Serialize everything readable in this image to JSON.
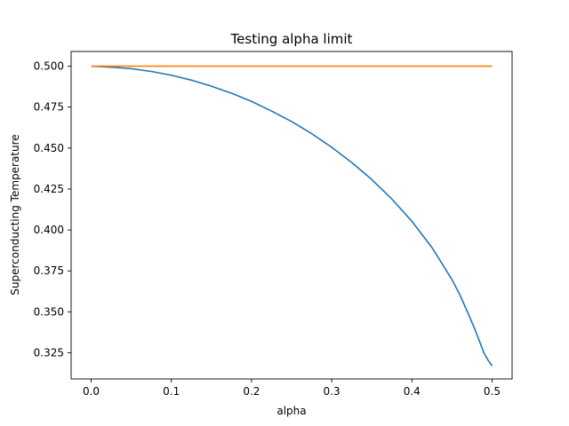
{
  "chart_data": {
    "type": "line",
    "title": "Testing alpha limit",
    "xlabel": "alpha",
    "ylabel": "Superconducting Temperature",
    "xlim": [
      -0.025,
      0.525
    ],
    "ylim": [
      0.309,
      0.509
    ],
    "grid": false,
    "legend": "none",
    "x_ticks": [
      0.0,
      0.1,
      0.2,
      0.3,
      0.4,
      0.5
    ],
    "x_tick_labels": [
      "0.0",
      "0.1",
      "0.2",
      "0.3",
      "0.4",
      "0.5"
    ],
    "y_ticks": [
      0.325,
      0.35,
      0.375,
      0.4,
      0.425,
      0.45,
      0.475,
      0.5
    ],
    "y_tick_labels": [
      "0.325",
      "0.350",
      "0.375",
      "0.400",
      "0.425",
      "0.450",
      "0.475",
      "0.500"
    ],
    "series": [
      {
        "color": "#1f77b4",
        "x": [
          0.0,
          0.025,
          0.05,
          0.075,
          0.1,
          0.125,
          0.15,
          0.175,
          0.2,
          0.225,
          0.25,
          0.275,
          0.3,
          0.325,
          0.35,
          0.375,
          0.4,
          0.425,
          0.45,
          0.46,
          0.47,
          0.48,
          0.49,
          0.495,
          0.5
        ],
        "y": [
          0.5,
          0.4994,
          0.4985,
          0.4968,
          0.4945,
          0.4915,
          0.4878,
          0.4835,
          0.4785,
          0.4726,
          0.4662,
          0.4588,
          0.4505,
          0.4412,
          0.4308,
          0.4189,
          0.4053,
          0.3893,
          0.3697,
          0.3602,
          0.3492,
          0.3376,
          0.3248,
          0.3205,
          0.317
        ]
      },
      {
        "color": "#ff7f0e",
        "x": [
          0.0,
          0.5
        ],
        "y": [
          0.5,
          0.5
        ]
      }
    ]
  }
}
